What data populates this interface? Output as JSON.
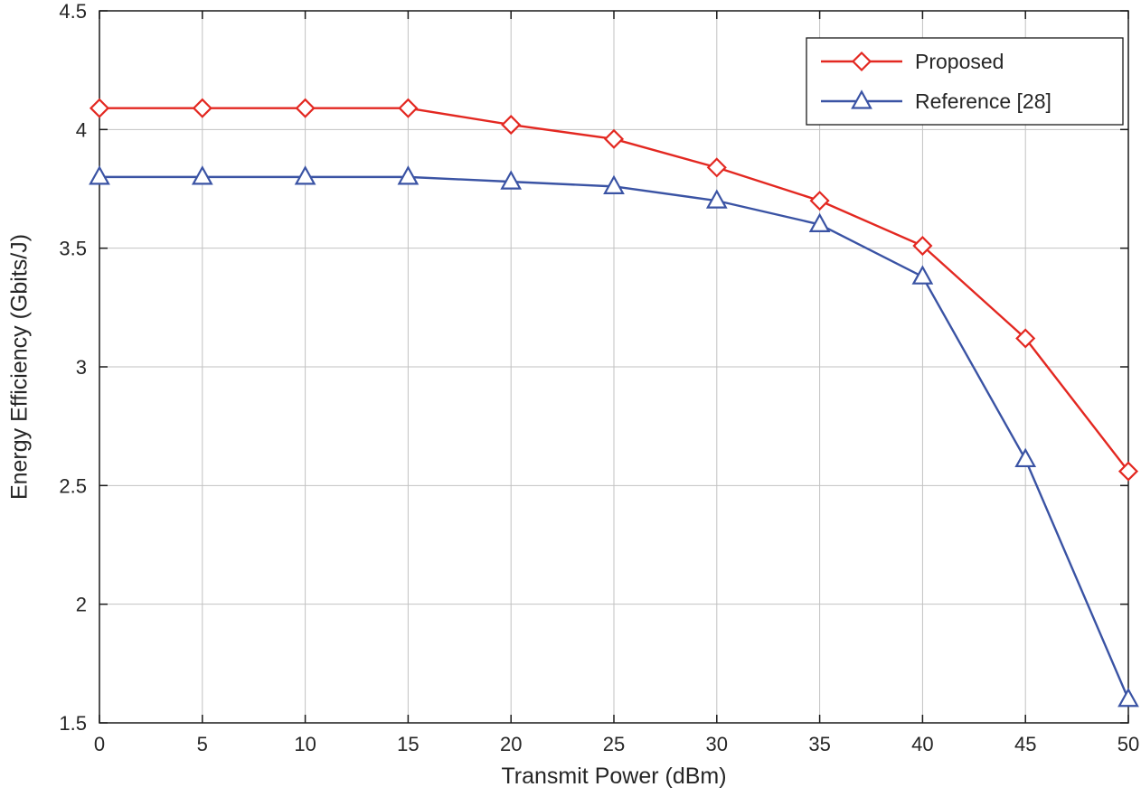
{
  "chart_data": {
    "type": "line",
    "title": "",
    "xlabel": "Transmit Power (dBm)",
    "ylabel": "Energy Efficiency (Gbits/J)",
    "x": [
      0,
      5,
      10,
      15,
      20,
      25,
      30,
      35,
      40,
      45,
      50
    ],
    "xlim": [
      0,
      50
    ],
    "ylim": [
      1.5,
      4.5
    ],
    "xticks": [
      0,
      5,
      10,
      15,
      20,
      25,
      30,
      35,
      40,
      45,
      50
    ],
    "yticks": [
      1.5,
      2,
      2.5,
      3,
      3.5,
      4,
      4.5
    ],
    "grid": true,
    "legend_position": "top-right",
    "colors": {
      "grid": "#c2c2c2",
      "axis": "#1a1a1a",
      "text": "#262626"
    },
    "series": [
      {
        "name": "Proposed",
        "color": "#e32821",
        "marker": "diamond",
        "values": [
          4.09,
          4.09,
          4.09,
          4.09,
          4.02,
          3.96,
          3.84,
          3.7,
          3.51,
          3.12,
          2.56
        ]
      },
      {
        "name": "Reference [28]",
        "color": "#3a53a4",
        "marker": "triangle",
        "values": [
          3.8,
          3.8,
          3.8,
          3.8,
          3.78,
          3.76,
          3.7,
          3.6,
          3.38,
          2.61,
          1.6
        ]
      }
    ]
  }
}
